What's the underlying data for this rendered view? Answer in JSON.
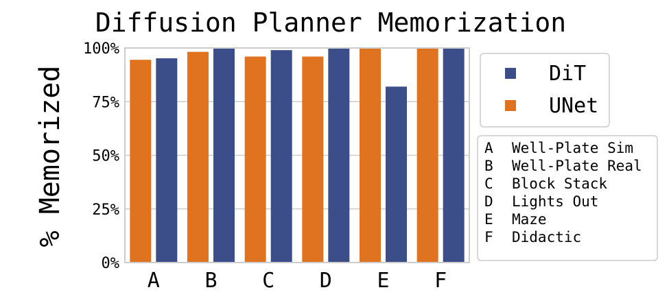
{
  "chart_data": {
    "type": "bar",
    "title": "Diffusion Planner Memorization",
    "xlabel": "",
    "ylabel": "% Memorized",
    "ylim": [
      0,
      100
    ],
    "yticks": [
      "0%",
      "25%",
      "50%",
      "75%",
      "100%"
    ],
    "yticks_values": [
      0,
      25,
      50,
      75,
      100
    ],
    "categories": [
      "A",
      "B",
      "C",
      "D",
      "E",
      "F"
    ],
    "series": [
      {
        "name": "UNet",
        "color": "#e07320",
        "values": [
          94.5,
          98.2,
          96.0,
          96.0,
          100,
          100
        ]
      },
      {
        "name": "DiT",
        "color": "#3c4e8a",
        "values": [
          95.2,
          100,
          99.0,
          100,
          82.0,
          100
        ]
      }
    ],
    "legend_order": [
      "DiT",
      "UNet"
    ],
    "legend_placement": "right",
    "grid": "horizontal",
    "category_key": [
      {
        "code": "A",
        "name": "Well-Plate Sim"
      },
      {
        "code": "B",
        "name": "Well-Plate Real"
      },
      {
        "code": "C",
        "name": "Block Stack"
      },
      {
        "code": "D",
        "name": "Lights Out"
      },
      {
        "code": "E",
        "name": "Maze"
      },
      {
        "code": "F",
        "name": "Didactic"
      }
    ]
  }
}
